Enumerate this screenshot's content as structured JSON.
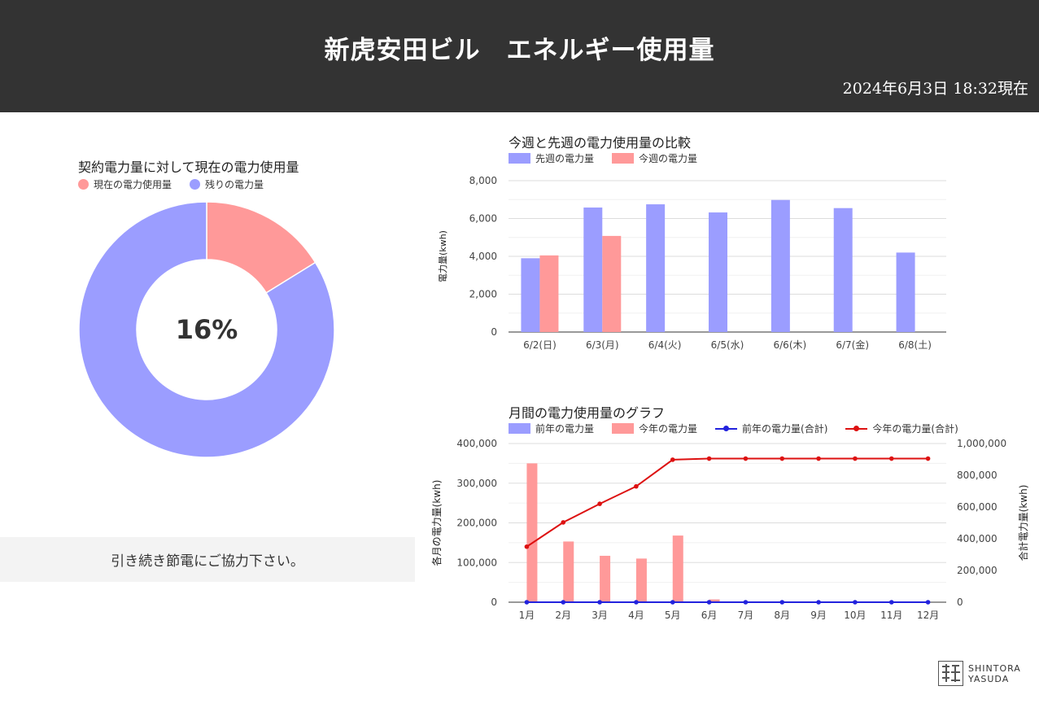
{
  "header": {
    "title": "新虎安田ビル　エネルギー使用量",
    "timestamp": "2024年6月3日 18:32現在"
  },
  "colors": {
    "header_bg": "#333333",
    "blue": "#9b9dff",
    "pink": "#ff9999",
    "line_blue": "#2222dd",
    "line_red": "#dd1111"
  },
  "message": "引き続き節電にご協力下さい。",
  "logo": {
    "line1": "SHINTORA",
    "line2": "YASUDA"
  },
  "chart_data": [
    {
      "type": "pie",
      "title": "契約電力量に対して現在の電力使用量",
      "center_label": "16%",
      "legend": [
        "現在の電力使用量",
        "残りの電力量"
      ],
      "values": [
        16.2,
        83.8
      ],
      "colors": [
        "#ff9999",
        "#9b9dff"
      ],
      "donut": true
    },
    {
      "type": "bar",
      "title": "今週と先週の電力使用量の比較",
      "categories": [
        "6/2(日)",
        "6/3(月)",
        "6/4(火)",
        "6/5(水)",
        "6/6(木)",
        "6/7(金)",
        "6/8(土)"
      ],
      "series": [
        {
          "name": "先週の電力量",
          "values": [
            3900,
            6580,
            6750,
            6320,
            6980,
            6550,
            4200
          ]
        },
        {
          "name": "今週の電力量",
          "values": [
            4050,
            5080,
            null,
            null,
            null,
            null,
            null
          ]
        }
      ],
      "ylabel": "電力量(kwh)",
      "ylim": [
        0,
        8000
      ],
      "yticks": [
        0,
        2000,
        4000,
        6000,
        8000
      ],
      "ytick_labels": [
        "0",
        "2,000",
        "4,000",
        "6,000",
        "8,000"
      ],
      "grid": true,
      "legend_position": "top-left"
    },
    {
      "type": "bar",
      "title": "月間の電力使用量のグラフ",
      "categories": [
        "1月",
        "2月",
        "3月",
        "4月",
        "5月",
        "6月",
        "7月",
        "8月",
        "9月",
        "10月",
        "11月",
        "12月"
      ],
      "series": [
        {
          "name": "前年の電力量",
          "type": "bar",
          "axis": "left",
          "values": [
            0,
            0,
            0,
            0,
            0,
            0,
            0,
            0,
            0,
            0,
            0,
            0
          ]
        },
        {
          "name": "今年の電力量",
          "type": "bar",
          "axis": "left",
          "values": [
            350000,
            153000,
            117000,
            110000,
            168000,
            7000,
            0,
            0,
            0,
            0,
            0,
            0
          ]
        },
        {
          "name": "前年の電力量(合計)",
          "type": "line",
          "axis": "right",
          "values": [
            0,
            0,
            0,
            0,
            0,
            0,
            0,
            0,
            0,
            0,
            0,
            0
          ]
        },
        {
          "name": "今年の電力量(合計)",
          "type": "line",
          "axis": "right",
          "values": [
            350000,
            503000,
            620000,
            730000,
            898000,
            905000,
            905000,
            905000,
            905000,
            905000,
            905000,
            905000
          ]
        }
      ],
      "ylabel": "各月の電力量(kwh)",
      "y2label": "合計電力量(kwh)",
      "ylim": [
        0,
        400000
      ],
      "y2lim": [
        0,
        1000000
      ],
      "yticks": [
        0,
        100000,
        200000,
        300000,
        400000
      ],
      "ytick_labels": [
        "0",
        "100,000",
        "200,000",
        "300,000",
        "400,000"
      ],
      "y2ticks": [
        0,
        200000,
        400000,
        600000,
        800000,
        1000000
      ],
      "y2tick_labels": [
        "0",
        "200,000",
        "400,000",
        "600,000",
        "800,000",
        "1,000,000"
      ],
      "grid": true,
      "legend_position": "top-left"
    }
  ]
}
